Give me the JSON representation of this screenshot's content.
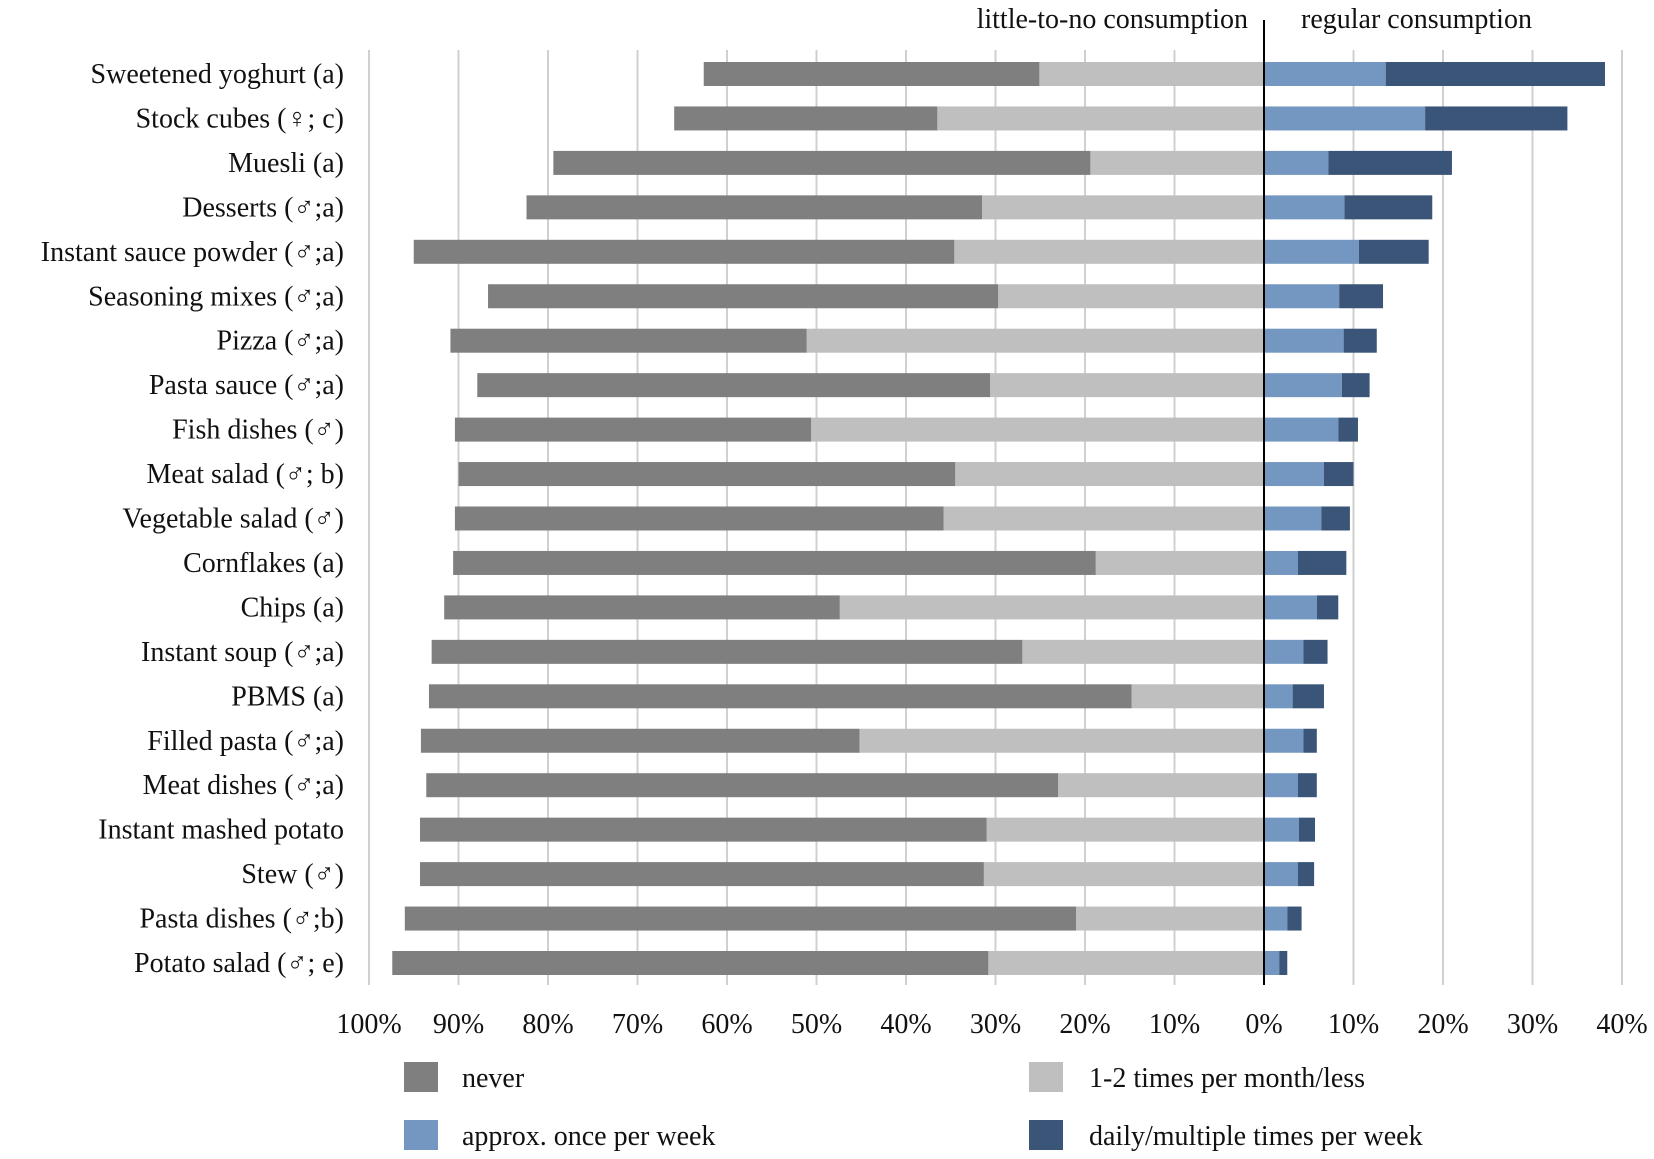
{
  "chart_data": {
    "type": "bar",
    "orientation": "horizontal-diverging",
    "header_left": "little-to-no consumption",
    "header_right": "regular consumption",
    "categories": [
      "Sweetened yoghurt (a)",
      "Stock cubes (♀; c)",
      "Muesli (a)",
      "Desserts (♂;a)",
      "Instant sauce powder (♂;a)",
      "Seasoning mixes (♂;a)",
      "Pizza (♂;a)",
      "Pasta sauce (♂;a)",
      "Fish dishes (♂)",
      "Meat salad (♂; b)",
      "Vegetable salad (♂)",
      "Cornflakes (a)",
      "Chips (a)",
      "Instant soup (♂;a)",
      "PBMS (a)",
      "Filled pasta (♂;a)",
      "Meat dishes (♂;a)",
      "Instant mashed potato",
      "Stew (♂)",
      "Pasta dishes (♂;b)",
      "Potato salad (♂; e)"
    ],
    "series": [
      {
        "name": "never",
        "side": "left",
        "color": "#7f7f7f",
        "values": [
          37.5,
          29.4,
          60.0,
          50.9,
          60.4,
          57.0,
          39.8,
          57.3,
          39.8,
          55.5,
          54.6,
          71.8,
          44.2,
          66.0,
          78.5,
          49.0,
          70.6,
          63.3,
          63.0,
          75.0,
          66.6
        ]
      },
      {
        "name": "1-2 times per month/less",
        "side": "left",
        "color": "#bfbfbf",
        "values": [
          25.1,
          36.5,
          19.4,
          31.5,
          34.6,
          29.7,
          51.1,
          30.6,
          50.6,
          34.5,
          35.8,
          18.8,
          47.4,
          27.0,
          14.8,
          45.2,
          23.0,
          31.0,
          31.3,
          21.0,
          30.8
        ]
      },
      {
        "name": "approx. once per week",
        "side": "right",
        "color": "#7397c0",
        "values": [
          13.6,
          18.0,
          7.2,
          9.0,
          10.6,
          8.4,
          8.9,
          8.7,
          8.3,
          6.7,
          6.4,
          3.8,
          5.9,
          4.4,
          3.2,
          4.4,
          3.8,
          3.9,
          3.8,
          2.6,
          1.7
        ]
      },
      {
        "name": "daily/multiple times per week",
        "side": "right",
        "color": "#3a5578",
        "values": [
          24.5,
          15.9,
          13.8,
          9.8,
          7.8,
          4.9,
          3.7,
          3.1,
          2.2,
          3.3,
          3.2,
          5.4,
          2.4,
          2.7,
          3.5,
          1.5,
          2.1,
          1.8,
          1.8,
          1.6,
          0.9
        ]
      }
    ],
    "x_ticks": [
      "100%",
      "90%",
      "80%",
      "70%",
      "60%",
      "50%",
      "40%",
      "30%",
      "20%",
      "10%",
      "0%",
      "10%",
      "20%",
      "30%",
      "40%"
    ],
    "xlim": [
      -100,
      40
    ],
    "grid": true,
    "legend": [
      {
        "label": "never",
        "color": "#7f7f7f"
      },
      {
        "label": "1-2 times per month/less",
        "color": "#bfbfbf"
      },
      {
        "label": "approx. once per week",
        "color": "#7397c0"
      },
      {
        "label": "daily/multiple times per week",
        "color": "#3a5578"
      }
    ],
    "legend_position": "bottom"
  }
}
